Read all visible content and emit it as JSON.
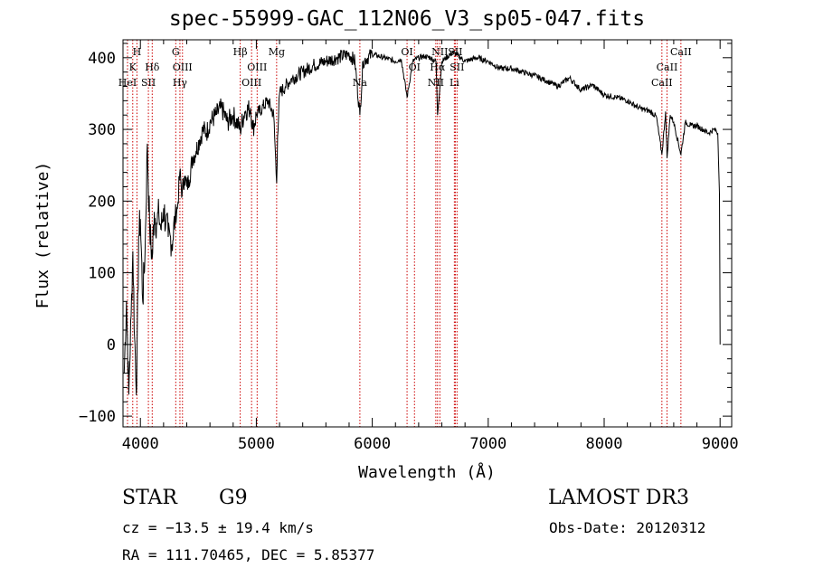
{
  "chart_data": {
    "type": "line",
    "title": "spec-55999-GAC_112N06_V3_sp05-047.fits",
    "xlabel": "Wavelength (Å)",
    "ylabel": "Flux (relative)",
    "xlim": [
      3850,
      9100
    ],
    "ylim": [
      -115,
      425
    ],
    "xticks": [
      4000,
      5000,
      6000,
      7000,
      8000,
      9000
    ],
    "xtick_labels": [
      "4000",
      "5000",
      "6000",
      "7000",
      "8000",
      "9000"
    ],
    "yticks": [
      -100,
      0,
      100,
      200,
      300,
      400
    ],
    "ytick_labels": [
      "−100",
      "0",
      "100",
      "200",
      "300",
      "400"
    ],
    "series": [
      {
        "name": "flux",
        "x": [
          3860,
          3880,
          3900,
          3920,
          3935,
          3950,
          3968,
          3985,
          4000,
          4020,
          4040,
          4060,
          4080,
          4102,
          4120,
          4140,
          4160,
          4180,
          4200,
          4220,
          4240,
          4260,
          4280,
          4300,
          4320,
          4340,
          4360,
          4380,
          4400,
          4420,
          4450,
          4480,
          4510,
          4540,
          4570,
          4600,
          4650,
          4700,
          4750,
          4800,
          4861,
          4900,
          4950,
          4970,
          5000,
          5050,
          5100,
          5150,
          5175,
          5183,
          5200,
          5250,
          5300,
          5400,
          5500,
          5600,
          5700,
          5800,
          5850,
          5893,
          5920,
          6000,
          6100,
          6200,
          6250,
          6300,
          6350,
          6400,
          6450,
          6500,
          6550,
          6563,
          6600,
          6700,
          6800,
          6900,
          7000,
          7100,
          7200,
          7300,
          7400,
          7500,
          7600,
          7700,
          7800,
          7900,
          8000,
          8100,
          8200,
          8300,
          8400,
          8450,
          8498,
          8530,
          8542,
          8570,
          8600,
          8662,
          8700,
          8750,
          8800,
          8850,
          8900,
          8950,
          8980,
          8995,
          9000
        ],
        "y": [
          -40,
          60,
          -70,
          40,
          130,
          10,
          -60,
          150,
          175,
          60,
          130,
          280,
          160,
          120,
          185,
          170,
          180,
          160,
          190,
          170,
          150,
          150,
          145,
          180,
          190,
          240,
          210,
          235,
          220,
          230,
          260,
          270,
          285,
          300,
          295,
          310,
          320,
          330,
          310,
          320,
          300,
          325,
          330,
          300,
          320,
          330,
          340,
          320,
          225,
          290,
          350,
          360,
          370,
          380,
          390,
          395,
          400,
          405,
          395,
          320,
          395,
          405,
          400,
          395,
          398,
          345,
          395,
          400,
          402,
          400,
          395,
          320,
          395,
          408,
          395,
          400,
          395,
          385,
          385,
          380,
          375,
          368,
          360,
          372,
          355,
          362,
          348,
          345,
          340,
          330,
          325,
          318,
          265,
          325,
          260,
          320,
          310,
          265,
          310,
          305,
          305,
          300,
          295,
          300,
          295,
          210,
          0
        ]
      }
    ],
    "lines": [
      {
        "label": "H",
        "x": 3970,
        "row": 0
      },
      {
        "label": "K",
        "x": 3934,
        "row": 1
      },
      {
        "label": "HeI",
        "x": 3889,
        "row": 2
      },
      {
        "label": "SII",
        "x": 4069,
        "row": 2
      },
      {
        "label": "Hδ",
        "x": 4102,
        "row": 1
      },
      {
        "label": "G",
        "x": 4305,
        "row": 0
      },
      {
        "label": "OIII",
        "x": 4363,
        "row": 1
      },
      {
        "label": "Hγ",
        "x": 4341,
        "row": 2
      },
      {
        "label": "Hβ",
        "x": 4861,
        "row": 0
      },
      {
        "label": "OIII",
        "x": 5007,
        "row": 1
      },
      {
        "label": "OIII",
        "x": 4959,
        "row": 2
      },
      {
        "label": "Mg",
        "x": 5175,
        "row": 0
      },
      {
        "label": "Na",
        "x": 5893,
        "row": 2
      },
      {
        "label": "OI",
        "x": 6300,
        "row": 0
      },
      {
        "label": "OI",
        "x": 6364,
        "row": 1
      },
      {
        "label": "NII",
        "x": 6583,
        "row": 0
      },
      {
        "label": "Hα",
        "x": 6563,
        "row": 1
      },
      {
        "label": "NII",
        "x": 6548,
        "row": 2
      },
      {
        "label": "SII",
        "x": 6716,
        "row": 0
      },
      {
        "label": "SII",
        "x": 6731,
        "row": 1
      },
      {
        "label": "Li",
        "x": 6708,
        "row": 2
      },
      {
        "label": "CaII",
        "x": 8662,
        "row": 0
      },
      {
        "label": "CaII",
        "x": 8542,
        "row": 1
      },
      {
        "label": "CaII",
        "x": 8498,
        "row": 2
      }
    ]
  },
  "info": {
    "object_class": "STAR",
    "subclass": "G9",
    "survey": "LAMOST DR3",
    "redshift": "cz = −13.5 ± 19.4 km/s",
    "obs_date": "Obs-Date: 20120312",
    "coords": "RA = 111.70465, DEC =   5.85377"
  },
  "colors": {
    "spectrum": "#000000",
    "line_markers": "#cc0000",
    "axes": "#000000"
  }
}
